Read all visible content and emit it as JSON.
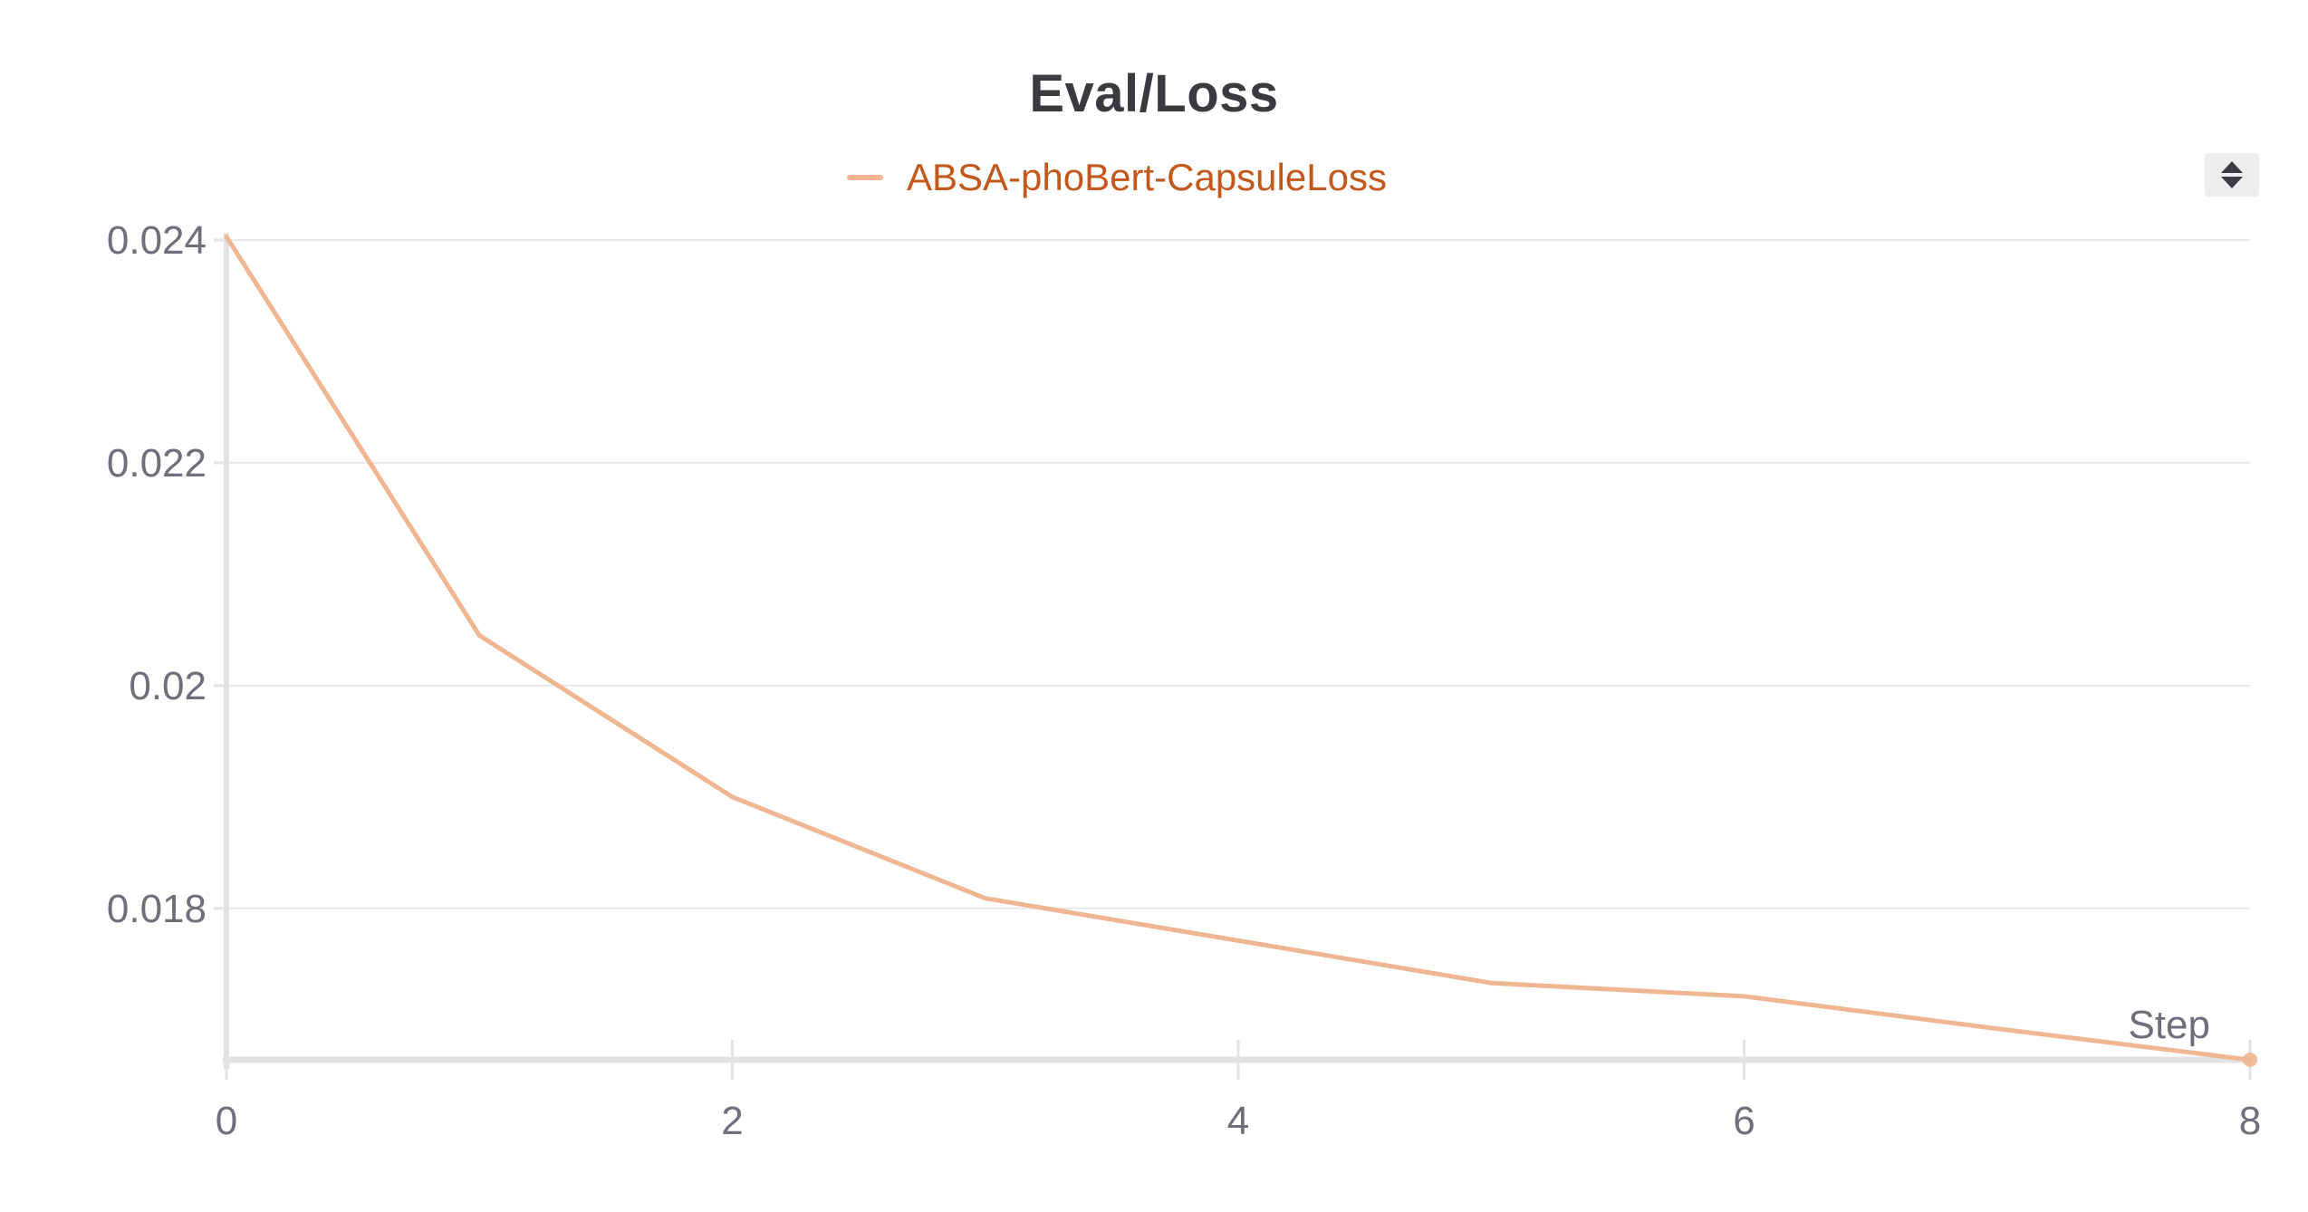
{
  "chart": {
    "title": "Eval/Loss",
    "legend_label": "ABSA-phoBert-CapsuleLoss",
    "xlabel": "Step"
  },
  "colors": {
    "series": "#f0b692",
    "legend_text": "#c2581c",
    "grid": "#e8e8ea",
    "axis": "#e3e3e5",
    "tick_text": "#6e6f79"
  },
  "icons": {
    "sort_toggle": "sort-up-down-icon"
  },
  "chart_data": {
    "type": "line",
    "title": "Eval/Loss",
    "xlabel": "Step",
    "ylabel": "",
    "x_ticks": [
      0,
      2,
      4,
      6,
      8
    ],
    "y_ticks": [
      "0.018",
      "0.02",
      "0.022",
      "0.024"
    ],
    "xlim": [
      0,
      8
    ],
    "ylim": [
      0.01664,
      0.024
    ],
    "grid": true,
    "legend_placement": "top-center",
    "series": [
      {
        "name": "ABSA-phoBert-CapsuleLoss",
        "x": [
          0,
          1,
          2,
          3,
          4,
          5,
          6,
          7,
          8
        ],
        "y": [
          0.02403,
          0.02045,
          0.019,
          0.01809,
          0.01771,
          0.01733,
          0.01721,
          0.01692,
          0.01664
        ]
      }
    ]
  }
}
